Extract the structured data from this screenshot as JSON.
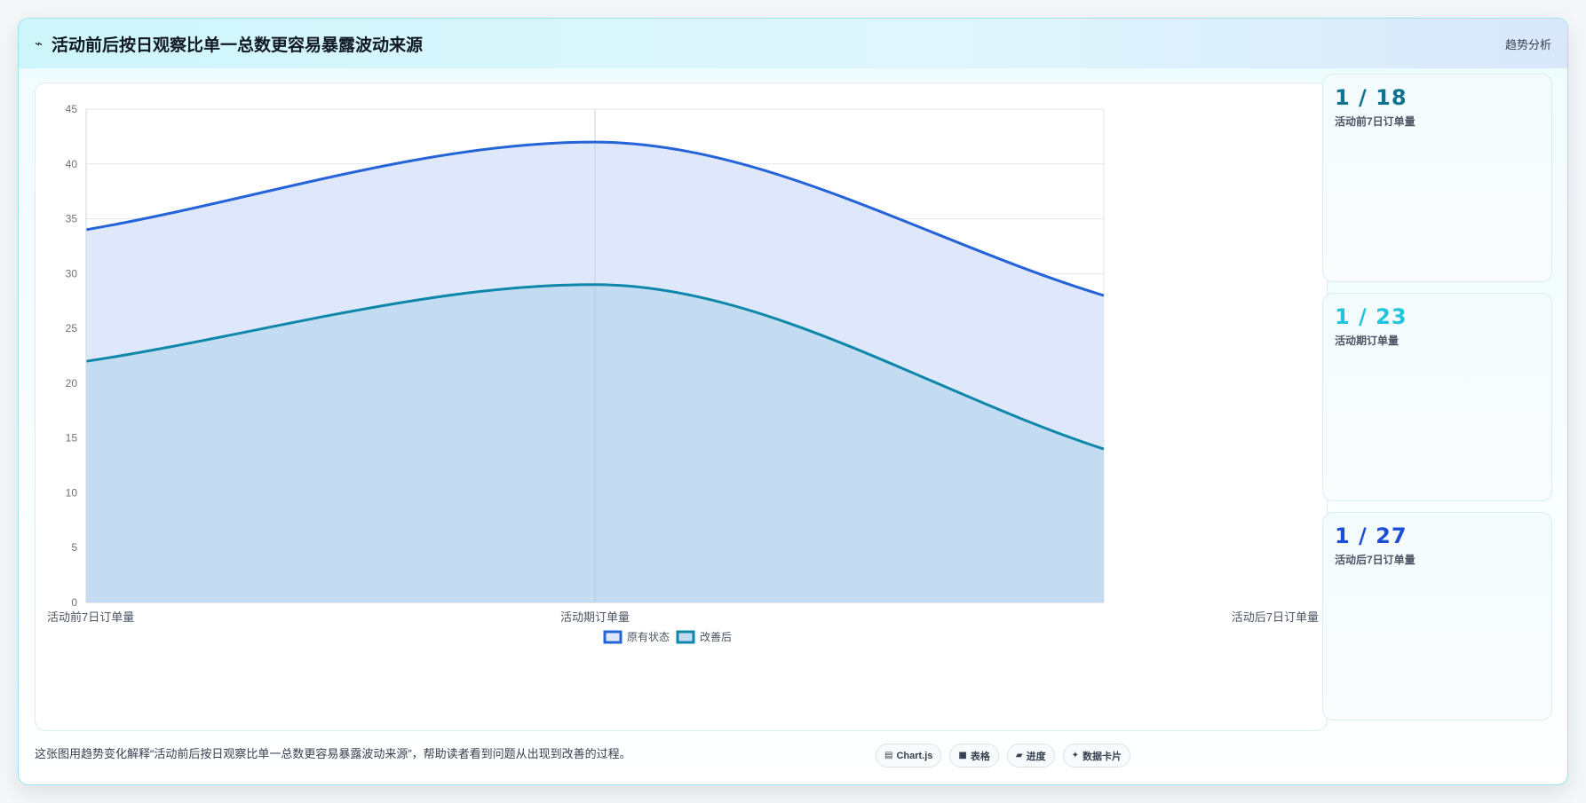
{
  "header": {
    "title": "活动前后按日观察比单一总数更容易暴露波动来源",
    "tag": "趋势分析",
    "icon": "trend-line-icon"
  },
  "stats": [
    {
      "value": "1 / 18",
      "label": "活动前7日订单量",
      "color": "#0e7490"
    },
    {
      "value": "1 / 23",
      "label": "活动期订单量",
      "color": "#22c4dc"
    },
    {
      "value": "1 / 27",
      "label": "活动后7日订单量",
      "color": "#1d4ed8"
    }
  ],
  "footer": {
    "description": "这张图用趋势变化解释“活动前后按日观察比单一总数更容易暴露波动来源”，帮助读者看到问题从出现到改善的过程。",
    "chips": [
      {
        "icon": "chart-icon",
        "label": "Chart.js"
      },
      {
        "icon": "table-icon",
        "label": "表格"
      },
      {
        "icon": "progress-icon",
        "label": "进度"
      },
      {
        "icon": "sparkle-icon",
        "label": "数据卡片"
      }
    ]
  },
  "chart_data": {
    "type": "area",
    "categories": [
      "活动前7日订单量",
      "活动期订单量",
      "活动后7日订单量"
    ],
    "series": [
      {
        "name": "原有状态",
        "values": [
          34,
          42,
          28
        ],
        "color": "#2563d9",
        "fill": "#dfe8fa"
      },
      {
        "name": "改善后",
        "values": [
          22,
          29,
          14
        ],
        "color": "#0e87aa",
        "fill": "#c4dcf1"
      }
    ],
    "ylim": [
      0,
      45
    ],
    "yticks": [
      0,
      5,
      10,
      15,
      20,
      25,
      30,
      35,
      40,
      45
    ],
    "grid": true,
    "legend_position": "bottom-center"
  }
}
